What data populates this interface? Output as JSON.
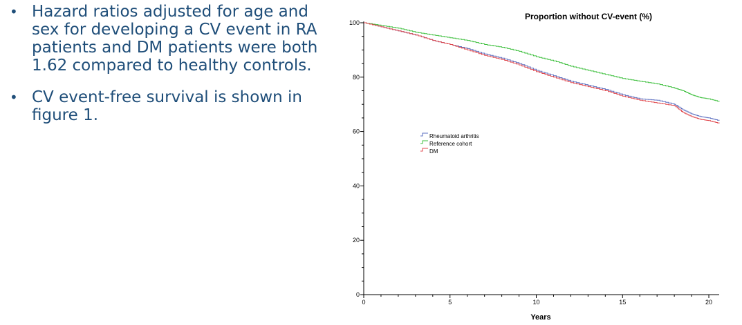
{
  "bullets": [
    {
      "text": "Hazard ratios adjusted for age and sex for developing a CV event in RA patients and DM patients were both 1.62 compared to healthy controls."
    },
    {
      "text": "CV event-free survival is shown in figure 1."
    }
  ],
  "bullet_symbol": "•",
  "colors": {
    "text": "#1f4e79",
    "rheumatoid_arthritis": "#5b6fc0",
    "reference_cohort": "#3cbf3c",
    "dm": "#e0474c"
  },
  "chart_data": {
    "type": "line",
    "title": "Proportion without CV-event (%)",
    "xlabel": "Years",
    "ylabel": "",
    "xlim": [
      0,
      20.6
    ],
    "ylim": [
      0,
      100
    ],
    "x_ticks": [
      0,
      5,
      10,
      15,
      20
    ],
    "y_ticks": [
      0,
      20,
      40,
      60,
      80,
      100
    ],
    "legend_position": "center-left",
    "grid": false,
    "series": [
      {
        "name": "Rheumatoid arthritis",
        "color": "#5b6fc0",
        "x": [
          0,
          1,
          2,
          3,
          4,
          5,
          6,
          7,
          8,
          9,
          10,
          11,
          12,
          13,
          14,
          15,
          16,
          17,
          18,
          18.5,
          19,
          19.5,
          20,
          20.6
        ],
        "y": [
          100,
          98.5,
          97,
          95.5,
          93.5,
          92,
          90.5,
          88.5,
          87,
          85,
          82.5,
          80.5,
          78.5,
          77,
          75.5,
          73.5,
          72,
          71.5,
          70,
          68,
          66.5,
          65.5,
          65,
          64
        ]
      },
      {
        "name": "Reference cohort",
        "color": "#3cbf3c",
        "x": [
          0,
          1,
          2,
          3,
          4,
          5,
          6,
          7,
          8,
          9,
          10,
          11,
          12,
          13,
          14,
          15,
          16,
          17,
          18,
          18.5,
          19,
          19.5,
          20,
          20.6
        ],
        "y": [
          100,
          99,
          98,
          96.5,
          95.5,
          94.5,
          93.5,
          92,
          91,
          89.5,
          87.5,
          86,
          84,
          82.5,
          81,
          79.5,
          78.5,
          77.5,
          76,
          75,
          73.5,
          72.5,
          72,
          71
        ]
      },
      {
        "name": "DM",
        "color": "#e0474c",
        "x": [
          0,
          1,
          2,
          3,
          4,
          5,
          6,
          7,
          8,
          9,
          10,
          11,
          12,
          13,
          14,
          15,
          16,
          17,
          18,
          18.5,
          19,
          19.5,
          20,
          20.6
        ],
        "y": [
          100,
          98.5,
          97,
          95.5,
          93.5,
          92,
          90,
          88,
          86.5,
          84.5,
          82,
          80,
          78,
          76.5,
          75,
          73,
          71.5,
          70.5,
          69.5,
          67,
          65.5,
          64.5,
          64,
          63
        ]
      }
    ]
  }
}
